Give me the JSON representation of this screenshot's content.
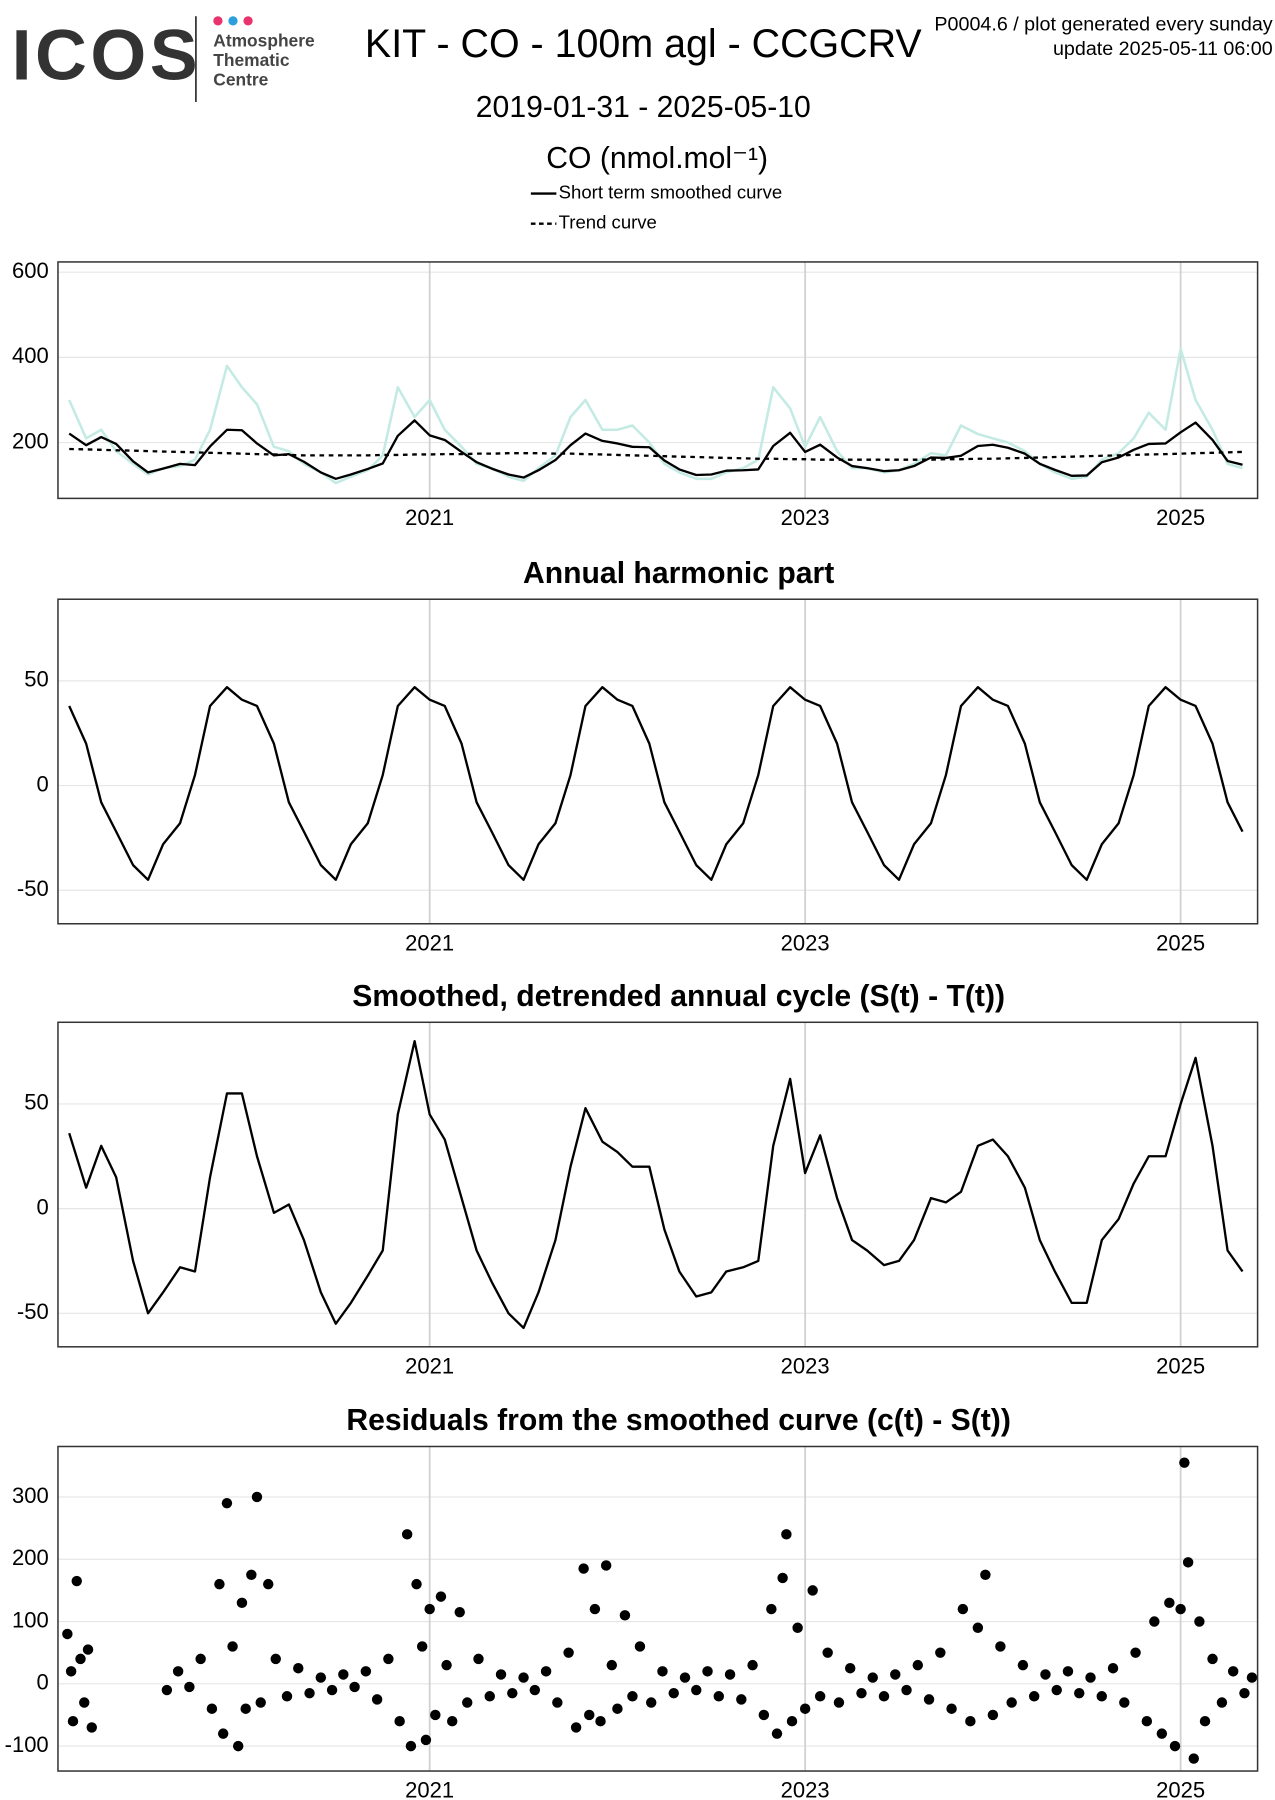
{
  "header": {
    "logo": "ICOS",
    "logo_lines": [
      "Atmosphere",
      "Thematic",
      "Centre"
    ],
    "title": "KIT - CO - 100m agl - CCGCRV",
    "date_range": "2019-01-31 - 2025-05-10",
    "notes": [
      "P0004.6 / plot generated every sunday",
      "update  2025-05-11 06:00"
    ],
    "unit": "CO (nmol.mol⁻¹)"
  },
  "chart_data": [
    {
      "type": "line",
      "legend": "top",
      "x": [
        2019.08,
        2019.17,
        2019.25,
        2019.33,
        2019.42,
        2019.5,
        2019.58,
        2019.67,
        2019.75,
        2019.83,
        2019.92,
        2020.0,
        2020.08,
        2020.17,
        2020.25,
        2020.33,
        2020.42,
        2020.5,
        2020.58,
        2020.67,
        2020.75,
        2020.83,
        2020.92,
        2021.0,
        2021.08,
        2021.17,
        2021.25,
        2021.33,
        2021.42,
        2021.5,
        2021.58,
        2021.67,
        2021.75,
        2021.83,
        2021.92,
        2022.0,
        2022.08,
        2022.17,
        2022.25,
        2022.33,
        2022.42,
        2022.5,
        2022.58,
        2022.67,
        2022.75,
        2022.83,
        2022.92,
        2023.0,
        2023.08,
        2023.17,
        2023.25,
        2023.33,
        2023.42,
        2023.5,
        2023.58,
        2023.67,
        2023.75,
        2023.83,
        2023.92,
        2024.0,
        2024.08,
        2024.17,
        2024.25,
        2024.33,
        2024.42,
        2024.5,
        2024.58,
        2024.67,
        2024.75,
        2024.83,
        2024.92,
        2025.0,
        2025.08,
        2025.17,
        2025.25,
        2025.33
      ],
      "series": [
        {
          "color": "#c4ebe3",
          "linestyle": "solid",
          "values": [
            300,
            210,
            230,
            180,
            150,
            125,
            140,
            145,
            160,
            230,
            380,
            330,
            290,
            190,
            180,
            150,
            130,
            105,
            120,
            135,
            170,
            330,
            260,
            300,
            230,
            190,
            150,
            140,
            120,
            110,
            140,
            170,
            260,
            300,
            230,
            230,
            240,
            200,
            150,
            130,
            115,
            115,
            130,
            140,
            160,
            330,
            280,
            190,
            260,
            180,
            140,
            140,
            130,
            135,
            150,
            175,
            170,
            240,
            220,
            210,
            200,
            180,
            150,
            130,
            115,
            120,
            160,
            175,
            210,
            270,
            230,
            420,
            300,
            230,
            150,
            140
          ]
        },
        {
          "name": "Short term smoothed curve",
          "color": "#000000",
          "linestyle": "solid",
          "values": [
            221,
            194,
            213,
            197,
            156,
            130,
            139,
            150,
            147,
            191,
            230,
            229,
            198,
            170,
            173,
            155,
            130,
            115,
            125,
            138,
            151,
            216,
            252,
            217,
            206,
            178,
            154,
            139,
            125,
            118,
            135,
            159,
            194,
            221,
            204,
            198,
            190,
            189,
            158,
            137,
            124,
            125,
            134,
            135,
            137,
            192,
            223,
            178,
            195,
            165,
            145,
            140,
            133,
            135,
            145,
            165,
            164,
            169,
            192,
            195,
            188,
            174,
            150,
            136,
            122,
            123,
            154,
            165,
            183,
            197,
            198,
            224,
            247,
            206,
            157,
            148
          ]
        },
        {
          "name": "Trend curve",
          "color": "#000000",
          "linestyle": "dashed",
          "values": [
            185,
            184,
            183,
            182,
            181,
            180,
            179,
            178,
            177,
            176,
            175,
            174,
            173,
            172,
            171,
            170,
            170,
            170,
            170,
            170,
            171,
            171,
            172,
            172,
            173,
            173,
            174,
            174,
            175,
            175,
            175,
            174,
            174,
            173,
            172,
            171,
            170,
            169,
            168,
            167,
            166,
            165,
            164,
            163,
            162,
            162,
            161,
            161,
            160,
            160,
            160,
            160,
            160,
            160,
            160,
            160,
            161,
            161,
            162,
            162,
            163,
            164,
            165,
            166,
            167,
            168,
            169,
            170,
            171,
            172,
            173,
            174,
            175,
            176,
            177,
            178
          ]
        }
      ],
      "xlim": [
        2019.02,
        2025.41
      ],
      "xticks": [
        2021,
        2023,
        2025
      ],
      "ylim": [
        69,
        624
      ],
      "yticks": [
        200,
        400,
        600
      ],
      "grid": true
    },
    {
      "type": "line",
      "title": "Annual harmonic part",
      "x": [
        2019.08,
        2019.17,
        2019.25,
        2019.33,
        2019.42,
        2019.5,
        2019.58,
        2019.67,
        2019.75,
        2019.83,
        2019.92,
        2020.0,
        2020.08,
        2020.17,
        2020.25,
        2020.33,
        2020.42,
        2020.5,
        2020.58,
        2020.67,
        2020.75,
        2020.83,
        2020.92,
        2021.0,
        2021.08,
        2021.17,
        2021.25,
        2021.33,
        2021.42,
        2021.5,
        2021.58,
        2021.67,
        2021.75,
        2021.83,
        2021.92,
        2022.0,
        2022.08,
        2022.17,
        2022.25,
        2022.33,
        2022.42,
        2022.5,
        2022.58,
        2022.67,
        2022.75,
        2022.83,
        2022.92,
        2023.0,
        2023.08,
        2023.17,
        2023.25,
        2023.33,
        2023.42,
        2023.5,
        2023.58,
        2023.67,
        2023.75,
        2023.83,
        2023.92,
        2024.0,
        2024.08,
        2024.17,
        2024.25,
        2024.33,
        2024.42,
        2024.5,
        2024.58,
        2024.67,
        2024.75,
        2024.83,
        2024.92,
        2025.0,
        2025.08,
        2025.17,
        2025.25,
        2025.33
      ],
      "series": [
        {
          "color": "#000000",
          "linestyle": "solid",
          "values": [
            38,
            20,
            -8,
            -22,
            -38,
            -45,
            -28,
            -18,
            5,
            38,
            47,
            41,
            38,
            20,
            -8,
            -22,
            -38,
            -45,
            -28,
            -18,
            5,
            38,
            47,
            41,
            38,
            20,
            -8,
            -22,
            -38,
            -45,
            -28,
            -18,
            5,
            38,
            47,
            41,
            38,
            20,
            -8,
            -22,
            -38,
            -45,
            -28,
            -18,
            5,
            38,
            47,
            41,
            38,
            20,
            -8,
            -22,
            -38,
            -45,
            -28,
            -18,
            5,
            38,
            47,
            41,
            38,
            20,
            -8,
            -22,
            -38,
            -45,
            -28,
            -18,
            5,
            38,
            47,
            41,
            38,
            20,
            -8,
            -22
          ]
        }
      ],
      "xlim": [
        2019.02,
        2025.41
      ],
      "xticks": [
        2021,
        2023,
        2025
      ],
      "ylim": [
        -66,
        89
      ],
      "yticks": [
        -50,
        0,
        50
      ],
      "grid": true
    },
    {
      "type": "line",
      "title": "Smoothed, detrended annual cycle (S(t) - T(t))",
      "x": [
        2019.08,
        2019.17,
        2019.25,
        2019.33,
        2019.42,
        2019.5,
        2019.58,
        2019.67,
        2019.75,
        2019.83,
        2019.92,
        2020.0,
        2020.08,
        2020.17,
        2020.25,
        2020.33,
        2020.42,
        2020.5,
        2020.58,
        2020.67,
        2020.75,
        2020.83,
        2020.92,
        2021.0,
        2021.08,
        2021.17,
        2021.25,
        2021.33,
        2021.42,
        2021.5,
        2021.58,
        2021.67,
        2021.75,
        2021.83,
        2021.92,
        2022.0,
        2022.08,
        2022.17,
        2022.25,
        2022.33,
        2022.42,
        2022.5,
        2022.58,
        2022.67,
        2022.75,
        2022.83,
        2022.92,
        2023.0,
        2023.08,
        2023.17,
        2023.25,
        2023.33,
        2023.42,
        2023.5,
        2023.58,
        2023.67,
        2023.75,
        2023.83,
        2023.92,
        2024.0,
        2024.08,
        2024.17,
        2024.25,
        2024.33,
        2024.42,
        2024.5,
        2024.58,
        2024.67,
        2024.75,
        2024.83,
        2024.92,
        2025.0,
        2025.08,
        2025.17,
        2025.25,
        2025.33
      ],
      "series": [
        {
          "color": "#000000",
          "linestyle": "solid",
          "values": [
            36,
            10,
            30,
            15,
            -25,
            -50,
            -40,
            -28,
            -30,
            15,
            55,
            55,
            25,
            -2,
            2,
            -15,
            -40,
            -55,
            -45,
            -32,
            -20,
            45,
            80,
            45,
            33,
            5,
            -20,
            -35,
            -50,
            -57,
            -40,
            -15,
            20,
            48,
            32,
            27,
            20,
            20,
            -10,
            -30,
            -42,
            -40,
            -30,
            -28,
            -25,
            30,
            62,
            17,
            35,
            5,
            -15,
            -20,
            -27,
            -25,
            -15,
            5,
            3,
            8,
            30,
            33,
            25,
            10,
            -15,
            -30,
            -45,
            -45,
            -15,
            -5,
            12,
            25,
            25,
            50,
            72,
            30,
            -20,
            -30
          ]
        }
      ],
      "xlim": [
        2019.02,
        2025.41
      ],
      "xticks": [
        2021,
        2023,
        2025
      ],
      "ylim": [
        -66,
        89
      ],
      "yticks": [
        -50,
        0,
        50
      ],
      "grid": true
    },
    {
      "type": "scatter",
      "title": "Residuals from the smoothed curve (c(t) - S(t))",
      "series": [
        {
          "color": "#000000",
          "x": [
            2019.07,
            2019.09,
            2019.1,
            2019.12,
            2019.14,
            2019.16,
            2019.18,
            2019.2,
            2019.6,
            2019.66,
            2019.72,
            2019.78,
            2019.84,
            2019.88,
            2019.9,
            2019.92,
            2019.95,
            2019.98,
            2020.0,
            2020.02,
            2020.05,
            2020.08,
            2020.1,
            2020.14,
            2020.18,
            2020.24,
            2020.3,
            2020.36,
            2020.42,
            2020.48,
            2020.54,
            2020.6,
            2020.66,
            2020.72,
            2020.78,
            2020.84,
            2020.88,
            2020.9,
            2020.93,
            2020.96,
            2020.98,
            2021.0,
            2021.03,
            2021.06,
            2021.09,
            2021.12,
            2021.16,
            2021.2,
            2021.26,
            2021.32,
            2021.38,
            2021.44,
            2021.5,
            2021.56,
            2021.62,
            2021.68,
            2021.74,
            2021.78,
            2021.82,
            2021.85,
            2021.88,
            2021.91,
            2021.94,
            2021.97,
            2022.0,
            2022.04,
            2022.08,
            2022.12,
            2022.18,
            2022.24,
            2022.3,
            2022.36,
            2022.42,
            2022.48,
            2022.54,
            2022.6,
            2022.66,
            2022.72,
            2022.78,
            2022.82,
            2022.85,
            2022.88,
            2022.9,
            2022.93,
            2022.96,
            2023.0,
            2023.04,
            2023.08,
            2023.12,
            2023.18,
            2023.24,
            2023.3,
            2023.36,
            2023.42,
            2023.48,
            2023.54,
            2023.6,
            2023.66,
            2023.72,
            2023.78,
            2023.84,
            2023.88,
            2023.92,
            2023.96,
            2024.0,
            2024.04,
            2024.1,
            2024.16,
            2024.22,
            2024.28,
            2024.34,
            2024.4,
            2024.46,
            2024.52,
            2024.58,
            2024.64,
            2024.7,
            2024.76,
            2024.82,
            2024.86,
            2024.9,
            2024.94,
            2024.97,
            2025.0,
            2025.02,
            2025.04,
            2025.07,
            2025.1,
            2025.13,
            2025.17,
            2025.22,
            2025.28,
            2025.34,
            2025.38
          ],
          "values": [
            80,
            20,
            -60,
            165,
            40,
            -30,
            55,
            -70,
            -10,
            20,
            -5,
            40,
            -40,
            160,
            -80,
            290,
            60,
            -100,
            130,
            -40,
            175,
            300,
            -30,
            160,
            40,
            -20,
            25,
            -15,
            10,
            -10,
            15,
            -5,
            20,
            -25,
            40,
            -60,
            240,
            -100,
            160,
            60,
            -90,
            120,
            -50,
            140,
            30,
            -60,
            115,
            -30,
            40,
            -20,
            15,
            -15,
            10,
            -10,
            20,
            -30,
            50,
            -70,
            185,
            -50,
            120,
            -60,
            190,
            30,
            -40,
            110,
            -20,
            60,
            -30,
            20,
            -15,
            10,
            -10,
            20,
            -20,
            15,
            -25,
            30,
            -50,
            120,
            -80,
            170,
            240,
            -60,
            90,
            -40,
            150,
            -20,
            50,
            -30,
            25,
            -15,
            10,
            -20,
            15,
            -10,
            30,
            -25,
            50,
            -40,
            120,
            -60,
            90,
            175,
            -50,
            60,
            -30,
            30,
            -20,
            15,
            -10,
            20,
            -15,
            10,
            -20,
            25,
            -30,
            50,
            -60,
            100,
            -80,
            130,
            -100,
            120,
            355,
            195,
            -120,
            100,
            -60,
            40,
            -30,
            20,
            -15,
            10
          ]
        }
      ],
      "xlim": [
        2019.02,
        2025.41
      ],
      "xticks": [
        2021,
        2023,
        2025
      ],
      "ylim": [
        -140,
        381
      ],
      "yticks": [
        -100,
        0,
        100,
        200,
        300
      ],
      "grid": true
    }
  ]
}
